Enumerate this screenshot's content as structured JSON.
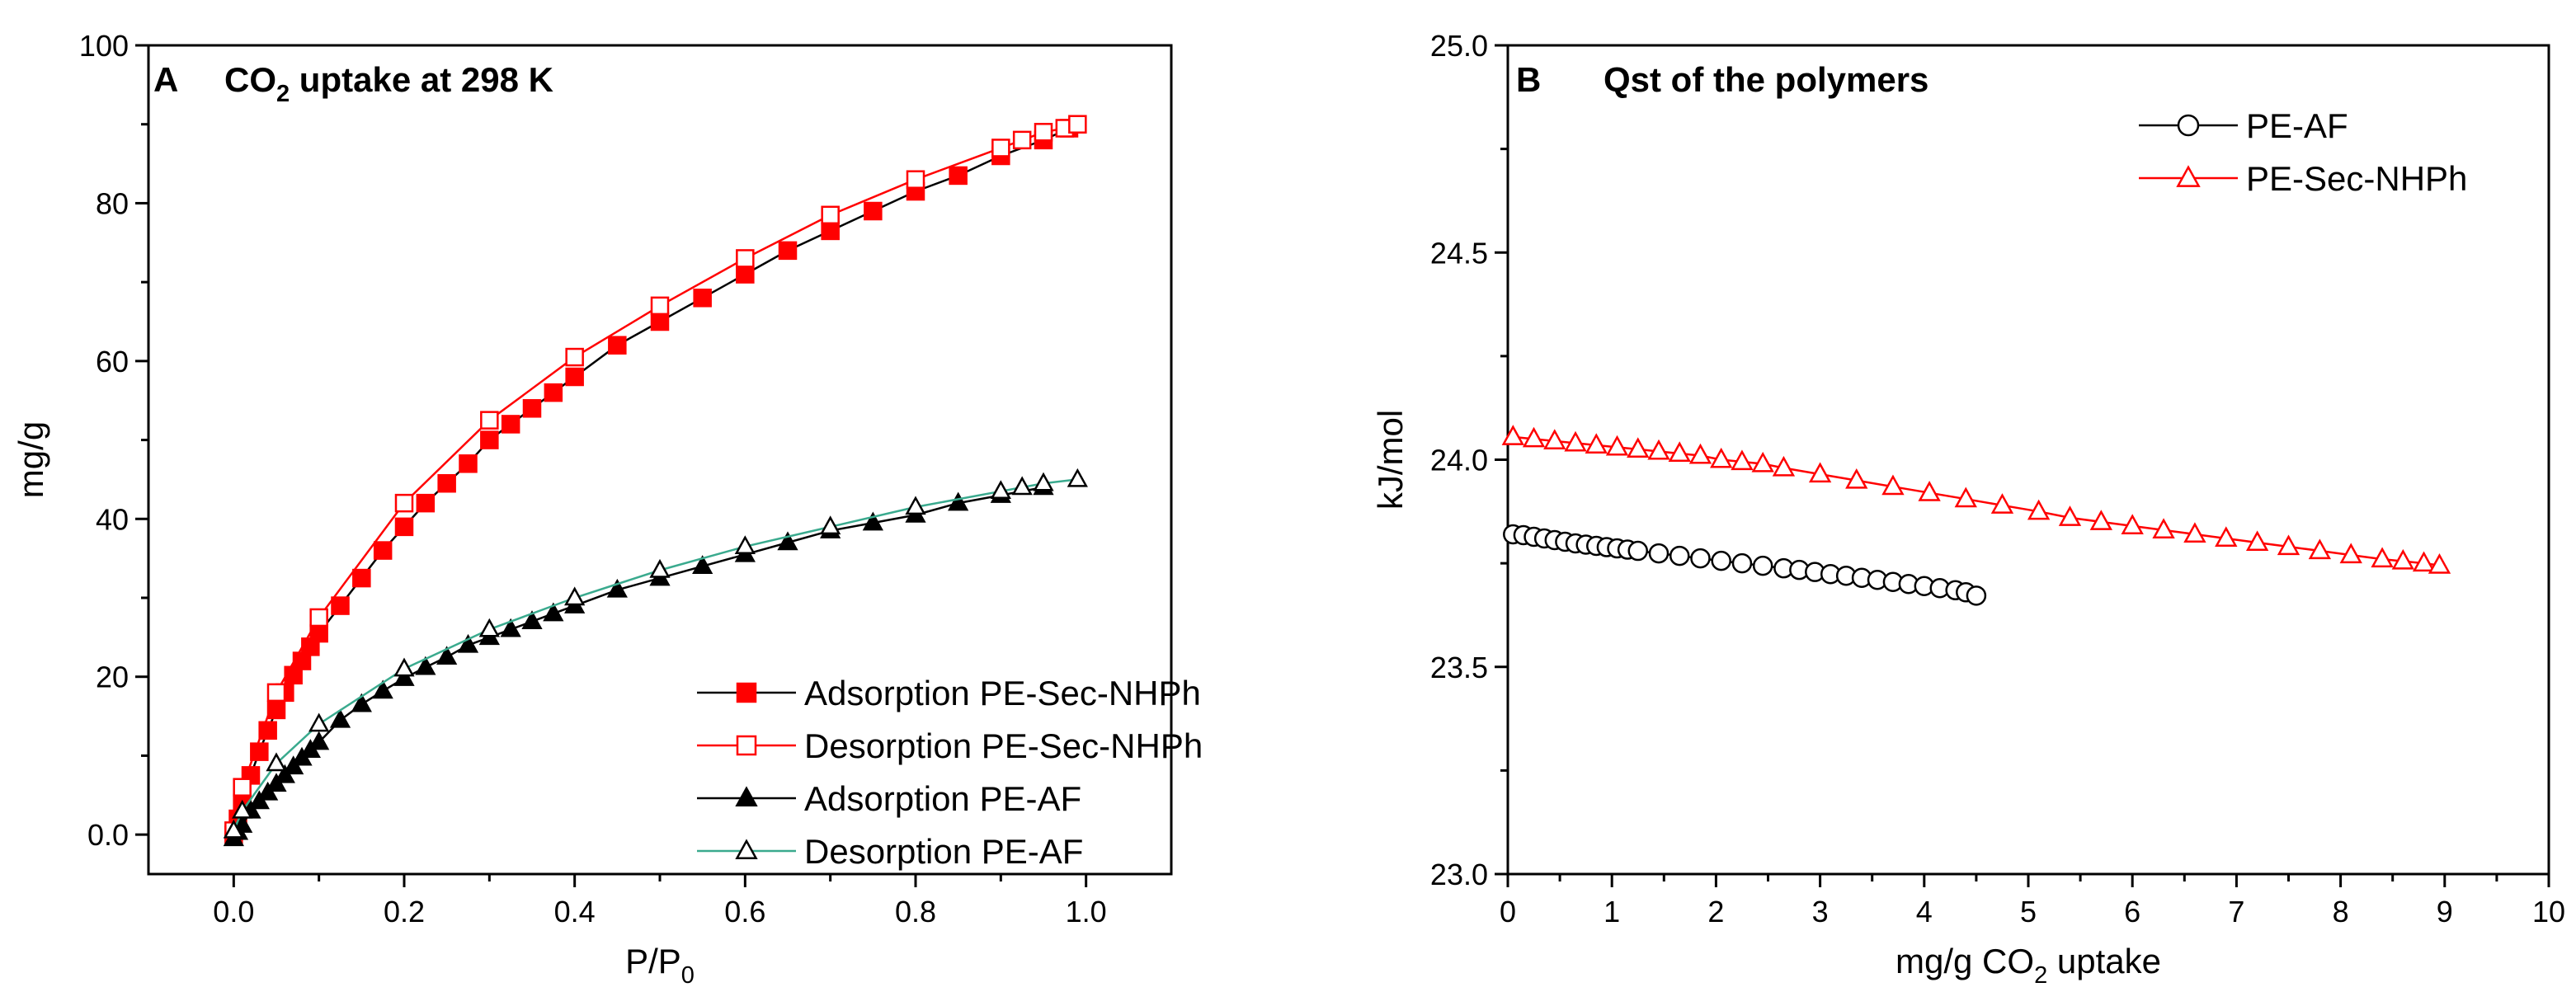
{
  "chart_data": [
    {
      "type": "scatter",
      "panel_label": "A",
      "title": "CO2 uptake at 298 K",
      "title_parts": {
        "before": "CO",
        "sub": "2",
        "after": " uptake at 298 K"
      },
      "xlabel": "P/P0",
      "xlabel_parts": {
        "before": "P/P",
        "sub": "0"
      },
      "ylabel": "mg/g",
      "xlim": [
        -0.1,
        1.1
      ],
      "ylim": [
        -5,
        100
      ],
      "xticks": [
        "0.0",
        "0.2",
        "0.4",
        "0.6",
        "0.8",
        "1.0"
      ],
      "xtick_values": [
        0,
        0.2,
        0.4,
        0.6,
        0.8,
        1.0
      ],
      "yticks": [
        "0.0",
        "20",
        "40",
        "60",
        "80",
        "100"
      ],
      "ytick_values": [
        0,
        20,
        40,
        60,
        80,
        100
      ],
      "legend_position": "lower-right",
      "series": [
        {
          "name": "Adsorption PE-Sec-NHPh",
          "marker": "filled-square",
          "color": "#ff0000",
          "line_color": "#000000",
          "x": [
            0.0,
            0.005,
            0.01,
            0.02,
            0.03,
            0.04,
            0.05,
            0.06,
            0.07,
            0.08,
            0.09,
            0.1,
            0.125,
            0.15,
            0.175,
            0.2,
            0.225,
            0.25,
            0.275,
            0.3,
            0.325,
            0.35,
            0.375,
            0.4,
            0.45,
            0.5,
            0.55,
            0.6,
            0.65,
            0.7,
            0.75,
            0.8,
            0.85,
            0.9,
            0.95,
            0.98
          ],
          "y": [
            0.0,
            2.0,
            4.0,
            7.5,
            10.5,
            13.2,
            15.8,
            18.0,
            20.2,
            22.0,
            23.8,
            25.5,
            29.0,
            32.5,
            36.0,
            39.0,
            42.0,
            44.5,
            47.0,
            50.0,
            52.0,
            54.0,
            56.0,
            58.0,
            62.0,
            65.0,
            68.0,
            71.0,
            74.0,
            76.5,
            79.0,
            81.5,
            83.5,
            86.0,
            88.0,
            89.5
          ]
        },
        {
          "name": "Desorption PE-Sec-NHPh",
          "marker": "open-square",
          "color": "#ff0000",
          "line_color": "#ff0000",
          "x": [
            0.0,
            0.01,
            0.05,
            0.1,
            0.2,
            0.3,
            0.4,
            0.5,
            0.6,
            0.7,
            0.8,
            0.9,
            0.925,
            0.95,
            0.975,
            0.99
          ],
          "y": [
            0.5,
            6.0,
            18.0,
            27.5,
            42.0,
            52.5,
            60.5,
            67.0,
            73.0,
            78.5,
            83.0,
            87.0,
            88.0,
            89.0,
            89.5,
            90.0
          ]
        },
        {
          "name": "Adsorption PE-AF",
          "marker": "filled-triangle",
          "color": "#000000",
          "line_color": "#000000",
          "x": [
            0.0,
            0.005,
            0.01,
            0.02,
            0.03,
            0.04,
            0.05,
            0.06,
            0.07,
            0.08,
            0.09,
            0.1,
            0.125,
            0.15,
            0.175,
            0.2,
            0.225,
            0.25,
            0.275,
            0.3,
            0.325,
            0.35,
            0.375,
            0.4,
            0.45,
            0.5,
            0.55,
            0.6,
            0.65,
            0.7,
            0.75,
            0.8,
            0.85,
            0.9,
            0.95
          ],
          "y": [
            -0.5,
            0.3,
            1.2,
            3.0,
            4.2,
            5.3,
            6.4,
            7.5,
            8.6,
            9.7,
            10.7,
            11.7,
            14.5,
            16.5,
            18.2,
            19.8,
            21.2,
            22.5,
            24.0,
            25.0,
            26.0,
            27.0,
            28.0,
            29.0,
            31.0,
            32.5,
            34.0,
            35.5,
            37.0,
            38.5,
            39.5,
            40.5,
            42.0,
            43.0,
            44.0
          ]
        },
        {
          "name": "Desorption PE-AF",
          "marker": "open-triangle",
          "color": "#000000",
          "line_color": "#3aaa8e",
          "x": [
            0.0,
            0.01,
            0.05,
            0.1,
            0.2,
            0.3,
            0.4,
            0.5,
            0.6,
            0.7,
            0.8,
            0.9,
            0.925,
            0.95,
            0.99
          ],
          "y": [
            0.5,
            3.0,
            9.0,
            14.0,
            21.0,
            26.0,
            30.0,
            33.5,
            36.5,
            39.0,
            41.5,
            43.5,
            44.0,
            44.5,
            45.0
          ]
        }
      ]
    },
    {
      "type": "scatter",
      "panel_label": "B",
      "title": "Qst of the polymers",
      "xlabel": "mg/g CO2 uptake",
      "xlabel_parts": {
        "before": "mg/g CO",
        "sub": "2",
        "after": " uptake"
      },
      "ylabel": "kJ/mol",
      "xlim": [
        0,
        10
      ],
      "ylim": [
        23.0,
        25.0
      ],
      "xticks": [
        "0",
        "1",
        "2",
        "3",
        "4",
        "5",
        "6",
        "7",
        "8",
        "9",
        "10"
      ],
      "xtick_values": [
        0,
        1,
        2,
        3,
        4,
        5,
        6,
        7,
        8,
        9,
        10
      ],
      "yticks": [
        "23.0",
        "23.5",
        "24.0",
        "24.5",
        "25.0"
      ],
      "ytick_values": [
        23.0,
        23.5,
        24.0,
        24.5,
        25.0
      ],
      "legend_position": "top-right",
      "series": [
        {
          "name": "PE-AF",
          "marker": "open-circle",
          "color": "#000000",
          "line_color": "#000000",
          "x": [
            0.05,
            0.15,
            0.25,
            0.35,
            0.45,
            0.55,
            0.65,
            0.75,
            0.85,
            0.95,
            1.05,
            1.15,
            1.25,
            1.45,
            1.65,
            1.85,
            2.05,
            2.25,
            2.45,
            2.65,
            2.8,
            2.95,
            3.1,
            3.25,
            3.4,
            3.55,
            3.7,
            3.85,
            4.0,
            4.15,
            4.3,
            4.4,
            4.5
          ],
          "y": [
            23.82,
            23.818,
            23.814,
            23.81,
            23.806,
            23.802,
            23.798,
            23.795,
            23.792,
            23.789,
            23.786,
            23.783,
            23.78,
            23.774,
            23.768,
            23.762,
            23.756,
            23.75,
            23.744,
            23.738,
            23.734,
            23.729,
            23.724,
            23.72,
            23.715,
            23.71,
            23.705,
            23.7,
            23.695,
            23.69,
            23.685,
            23.68,
            23.672
          ]
        },
        {
          "name": "PE-Sec-NHPh",
          "marker": "open-triangle",
          "color": "#ff0000",
          "line_color": "#ff0000",
          "x": [
            0.05,
            0.25,
            0.45,
            0.65,
            0.85,
            1.05,
            1.25,
            1.45,
            1.65,
            1.85,
            2.05,
            2.25,
            2.45,
            2.65,
            3.0,
            3.35,
            3.7,
            4.05,
            4.4,
            4.75,
            5.1,
            5.4,
            5.7,
            6.0,
            6.3,
            6.6,
            6.9,
            7.2,
            7.5,
            7.8,
            8.1,
            8.4,
            8.6,
            8.8,
            8.95
          ],
          "y": [
            24.055,
            24.05,
            24.045,
            24.04,
            24.035,
            24.03,
            24.025,
            24.02,
            24.015,
            24.01,
            24.0,
            23.995,
            23.99,
            23.98,
            23.965,
            23.95,
            23.935,
            23.92,
            23.905,
            23.89,
            23.875,
            23.86,
            23.85,
            23.84,
            23.83,
            23.82,
            23.81,
            23.8,
            23.79,
            23.78,
            23.77,
            23.76,
            23.755,
            23.75,
            23.745
          ]
        }
      ]
    }
  ]
}
